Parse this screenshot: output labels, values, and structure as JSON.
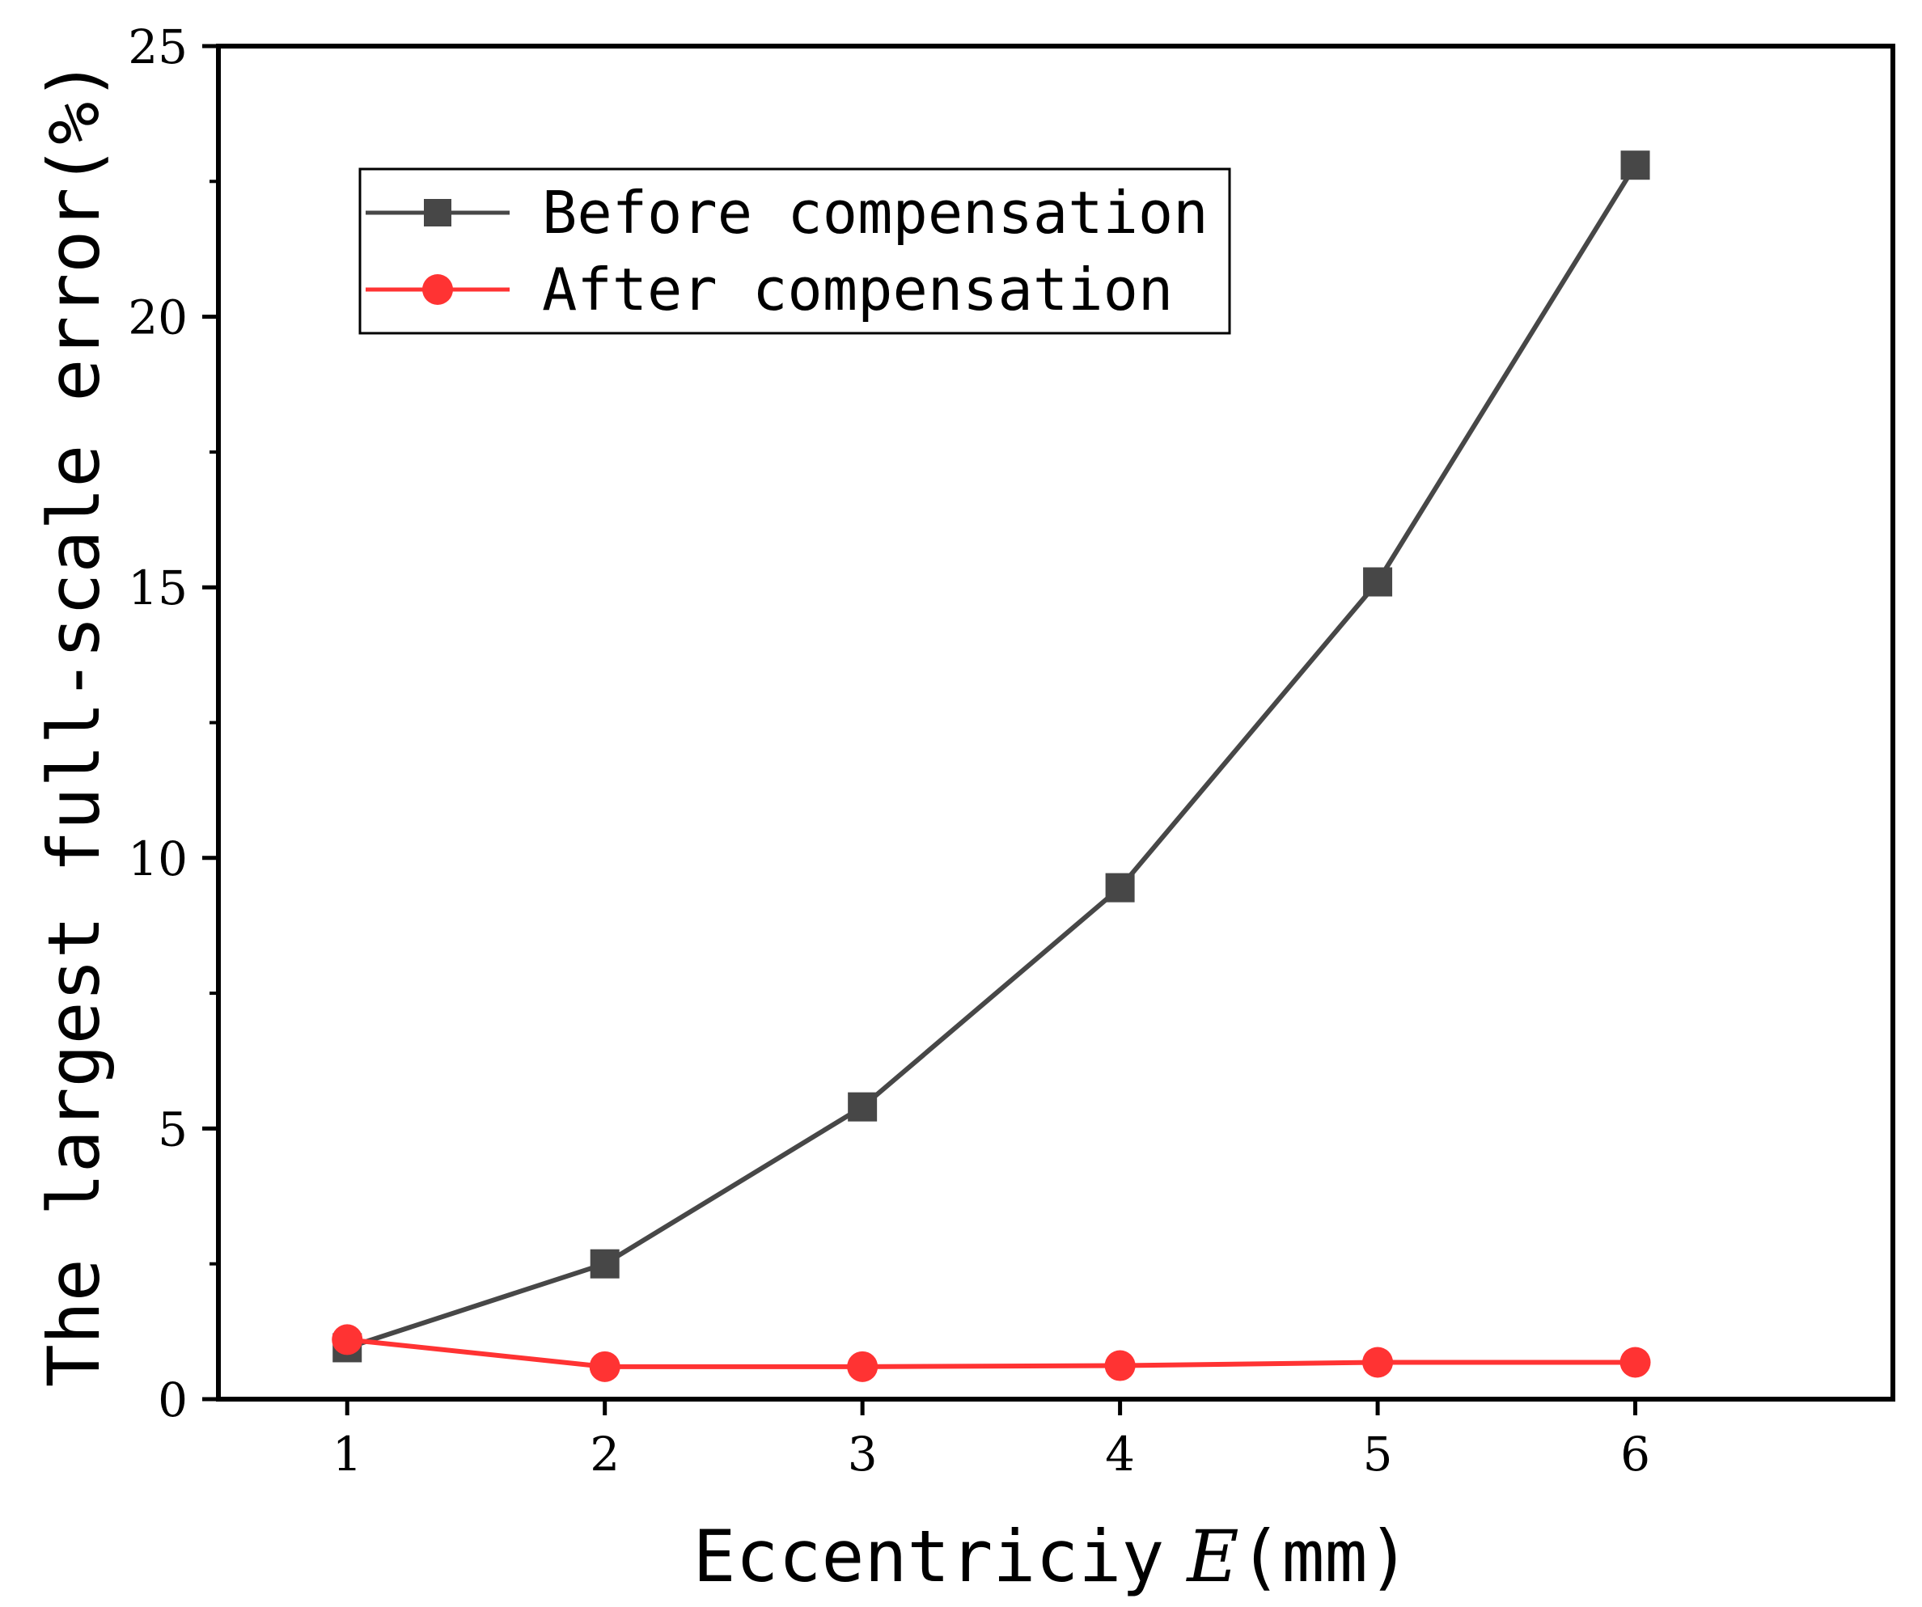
{
  "chart_data": {
    "type": "line",
    "title": "",
    "xlabel": "Eccentriciy",
    "xlabel_symbol": "E",
    "xlabel_unit": "(mm)",
    "ylabel": "The largest full-scale error(%)",
    "x": [
      1,
      2,
      3,
      4,
      5,
      6
    ],
    "xlim": [
      0.5,
      7.0
    ],
    "ylim": [
      0,
      25
    ],
    "x_ticks": [
      "1",
      "2",
      "3",
      "4",
      "5",
      "6"
    ],
    "y_ticks": [
      "0",
      "5",
      "10",
      "15",
      "20",
      "25"
    ],
    "grid": false,
    "legend_position": "top-left",
    "series": [
      {
        "name": "Before compensation",
        "values": [
          0.95,
          2.5,
          5.4,
          9.45,
          15.1,
          22.8
        ],
        "color": "#474747",
        "marker": "square"
      },
      {
        "name": "After compensation",
        "values": [
          1.1,
          0.6,
          0.6,
          0.62,
          0.68,
          0.68
        ],
        "color": "#ff3333",
        "marker": "circle"
      }
    ]
  }
}
